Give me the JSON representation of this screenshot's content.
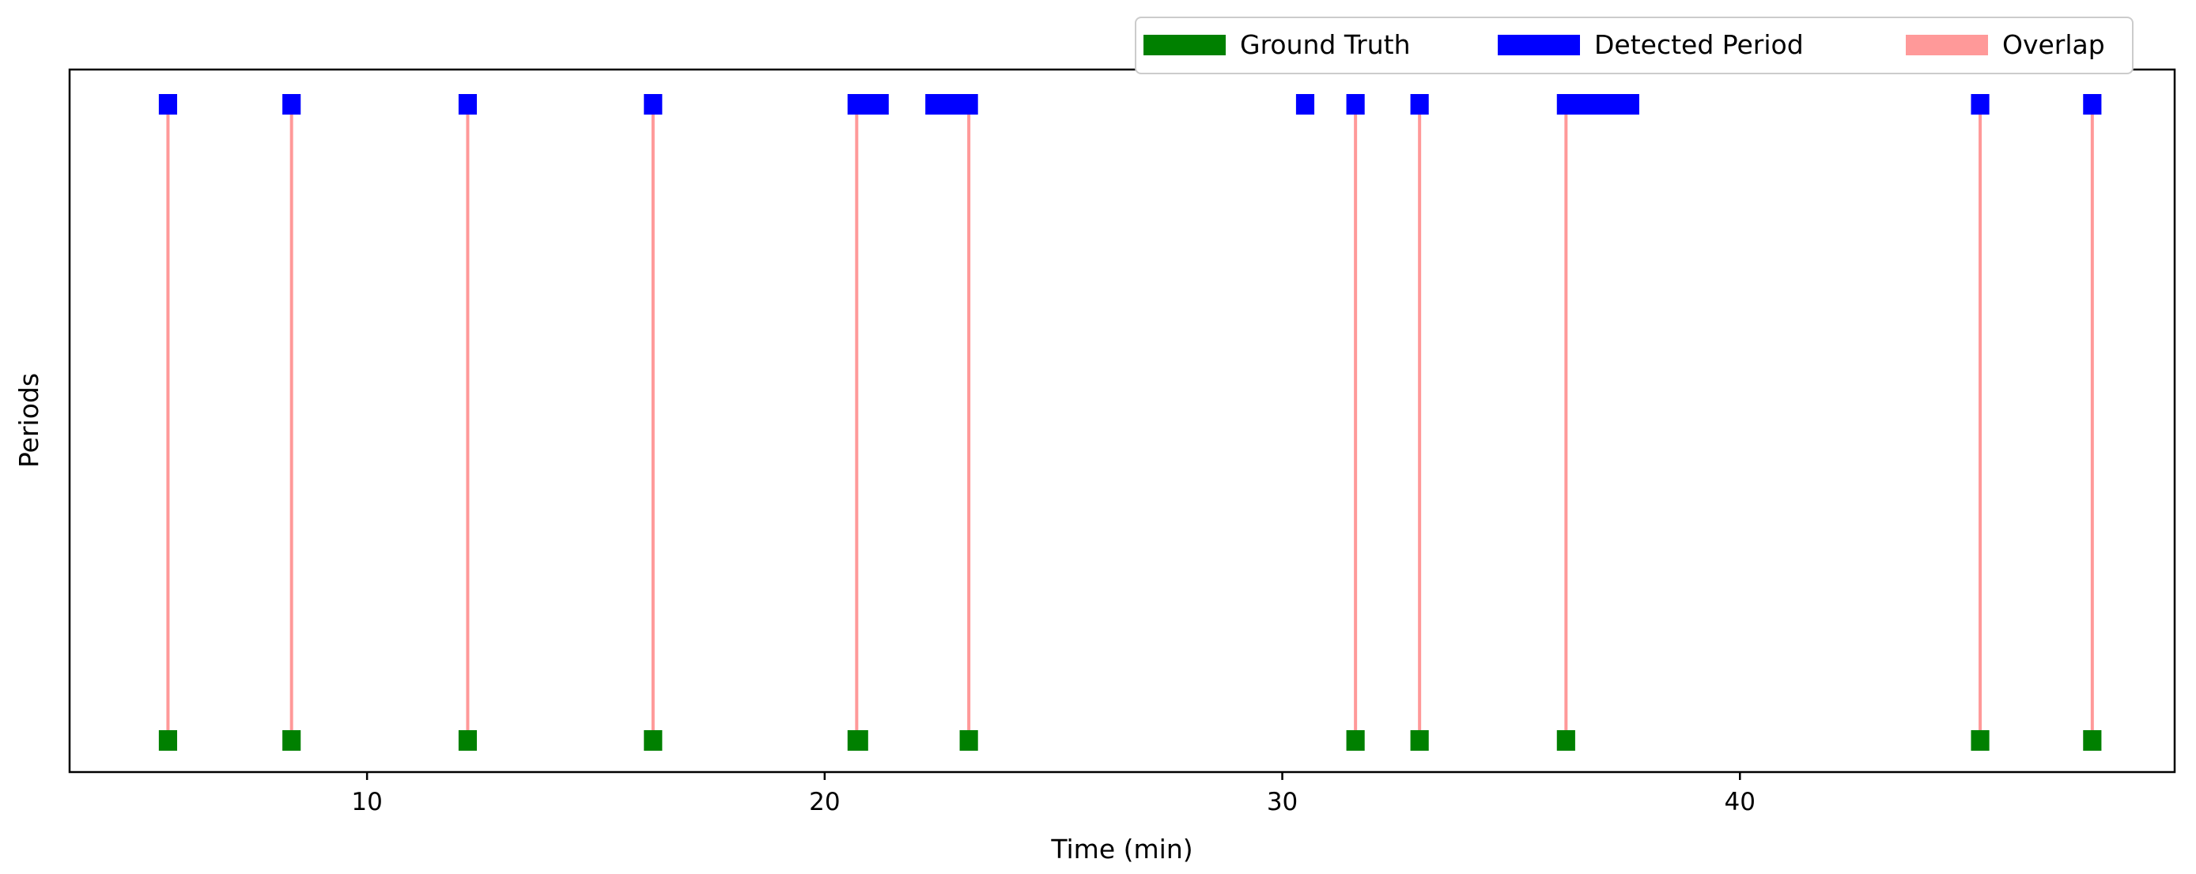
{
  "chart_data": {
    "type": "timeline",
    "xlabel": "Time (min)",
    "ylabel": "Periods",
    "xlim": [
      3.5,
      49.5
    ],
    "x_ticks": [
      10,
      20,
      30,
      40
    ],
    "x_tick_labels": [
      "10",
      "20",
      "30",
      "40"
    ],
    "legend": {
      "placement": "top-right",
      "entries": [
        {
          "label": "Ground Truth",
          "color": "#008000"
        },
        {
          "label": "Detected Period",
          "color": "#0000ff"
        },
        {
          "label": "Overlap",
          "color": "#ff9999"
        }
      ]
    },
    "rows": {
      "ground_truth_level": 0,
      "detected_level": 1
    },
    "ground_truth_periods": [
      [
        5.45,
        5.85
      ],
      [
        8.15,
        8.55
      ],
      [
        12.0,
        12.4
      ],
      [
        16.05,
        16.45
      ],
      [
        20.5,
        20.95
      ],
      [
        22.95,
        23.35
      ],
      [
        31.4,
        31.8
      ],
      [
        32.8,
        33.2
      ],
      [
        36.0,
        36.4
      ],
      [
        45.05,
        45.45
      ],
      [
        47.5,
        47.9
      ]
    ],
    "detected_periods": [
      [
        5.45,
        5.85
      ],
      [
        8.15,
        8.55
      ],
      [
        12.0,
        12.4
      ],
      [
        16.05,
        16.45
      ],
      [
        20.5,
        21.4
      ],
      [
        22.2,
        23.35
      ],
      [
        30.3,
        30.7
      ],
      [
        31.4,
        31.8
      ],
      [
        32.8,
        33.2
      ],
      [
        36.0,
        37.8
      ],
      [
        45.05,
        45.45
      ],
      [
        47.5,
        47.9
      ]
    ],
    "overlap_times": [
      5.65,
      8.35,
      12.2,
      16.25,
      20.7,
      23.15,
      31.6,
      33.0,
      36.2,
      45.25,
      47.7
    ],
    "colors": {
      "ground_truth": "#008000",
      "detected": "#0000ff",
      "overlap": "#ff9999"
    }
  }
}
